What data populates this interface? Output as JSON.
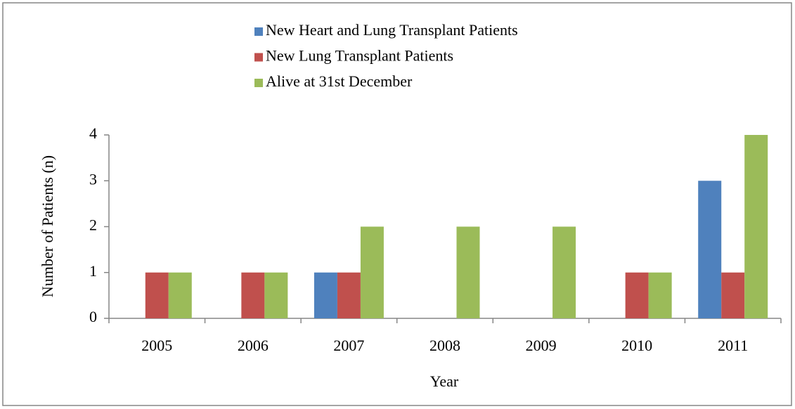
{
  "chart_data": {
    "type": "bar",
    "categories": [
      "2005",
      "2006",
      "2007",
      "2008",
      "2009",
      "2010",
      "2011"
    ],
    "series": [
      {
        "name": "New Heart and Lung Transplant Patients",
        "color": "#4f81bd",
        "values": [
          0,
          0,
          1,
          0,
          0,
          0,
          3
        ]
      },
      {
        "name": "New Lung Transplant Patients",
        "color": "#c0504d",
        "values": [
          1,
          1,
          1,
          0,
          0,
          1,
          1
        ]
      },
      {
        "name": "Alive at 31st December",
        "color": "#9bbb59",
        "values": [
          1,
          1,
          2,
          2,
          2,
          1,
          4
        ]
      }
    ],
    "ylim": [
      0,
      4
    ],
    "yticks": [
      0,
      1,
      2,
      3,
      4
    ],
    "y_label": "Number of Patients (n)",
    "x_label": "Year",
    "legend": "top",
    "grid": false
  }
}
